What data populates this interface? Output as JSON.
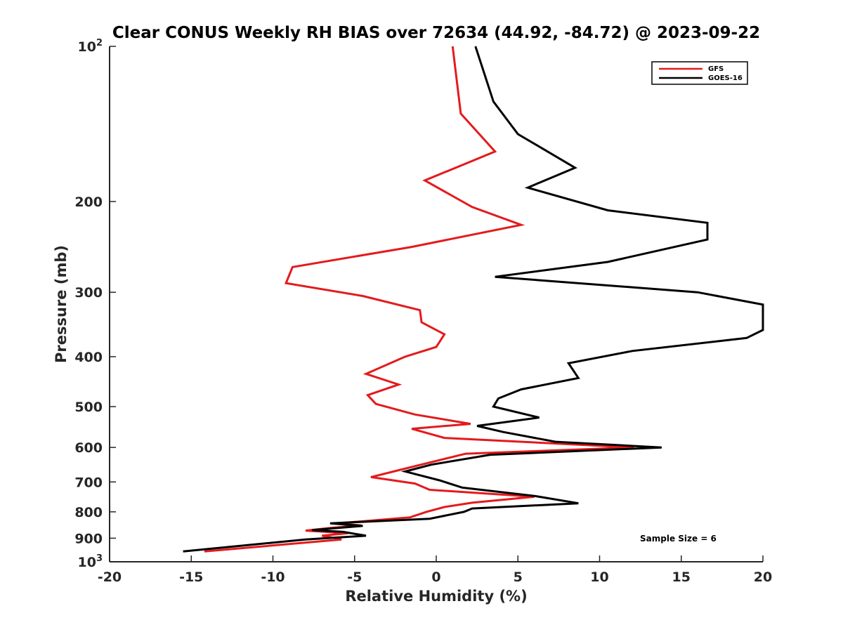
{
  "chart_data": {
    "type": "line",
    "title": "Clear CONUS Weekly RH BIAS over 72634 (44.92, -84.72) @ 2023-09-22",
    "xlabel": "Relative Humidity (%)",
    "ylabel": "Pressure (mb)",
    "xlim": [
      -20,
      20
    ],
    "ylim": [
      100,
      1000
    ],
    "y_scale": "log",
    "y_reversed": true,
    "x_ticks": [
      {
        "value": -20,
        "label": "-20"
      },
      {
        "value": -15,
        "label": "-15"
      },
      {
        "value": -10,
        "label": "-10"
      },
      {
        "value": -5,
        "label": "-5"
      },
      {
        "value": 0,
        "label": "0"
      },
      {
        "value": 5,
        "label": "5"
      },
      {
        "value": 10,
        "label": "10"
      },
      {
        "value": 15,
        "label": "15"
      },
      {
        "value": 20,
        "label": "20"
      }
    ],
    "y_ticks": [
      {
        "value": 100,
        "base": "10",
        "exp": "2",
        "label": ""
      },
      {
        "value": 200,
        "label": "200"
      },
      {
        "value": 300,
        "label": "300"
      },
      {
        "value": 400,
        "label": "400"
      },
      {
        "value": 500,
        "label": "500"
      },
      {
        "value": 600,
        "label": "600"
      },
      {
        "value": 700,
        "label": "700"
      },
      {
        "value": 800,
        "label": "800"
      },
      {
        "value": 900,
        "label": "900"
      },
      {
        "value": 1000,
        "base": "10",
        "exp": "3",
        "label": ""
      }
    ],
    "legend_position": "top-right",
    "annotation": "Sample Size = 6",
    "series": [
      {
        "name": "GFS",
        "color": "#e41a1c",
        "points": [
          [
            1.0,
            100
          ],
          [
            1.5,
            135
          ],
          [
            3.6,
            160
          ],
          [
            -0.7,
            182
          ],
          [
            2.2,
            205
          ],
          [
            5.2,
            222
          ],
          [
            -1.5,
            245
          ],
          [
            -8.8,
            268
          ],
          [
            -9.2,
            288
          ],
          [
            -4.5,
            305
          ],
          [
            -1.0,
            325
          ],
          [
            -0.9,
            343
          ],
          [
            0.5,
            362
          ],
          [
            0.0,
            383
          ],
          [
            -1.9,
            400
          ],
          [
            -4.3,
            432
          ],
          [
            -2.3,
            453
          ],
          [
            -4.2,
            475
          ],
          [
            -3.7,
            494
          ],
          [
            -1.3,
            518
          ],
          [
            2.1,
            540
          ],
          [
            -1.5,
            552
          ],
          [
            0.5,
            575
          ],
          [
            12.1,
            600
          ],
          [
            1.8,
            617
          ],
          [
            -2.2,
            663
          ],
          [
            -4.0,
            685
          ],
          [
            -1.3,
            705
          ],
          [
            -0.4,
            725
          ],
          [
            6.0,
            748
          ],
          [
            2.2,
            768
          ],
          [
            0.5,
            783
          ],
          [
            -0.6,
            800
          ],
          [
            -1.6,
            820
          ],
          [
            -6.0,
            842
          ],
          [
            -4.6,
            850
          ],
          [
            -6.5,
            860
          ],
          [
            -8.0,
            870
          ],
          [
            -5.4,
            880
          ],
          [
            -7.0,
            890
          ],
          [
            -5.8,
            905
          ],
          [
            -14.2,
            955
          ]
        ]
      },
      {
        "name": "GOES-16",
        "color": "#000000",
        "points": [
          [
            2.4,
            100
          ],
          [
            3.5,
            128
          ],
          [
            5.0,
            148
          ],
          [
            8.5,
            172
          ],
          [
            5.6,
            188
          ],
          [
            10.5,
            208
          ],
          [
            16.6,
            220
          ],
          [
            16.6,
            237
          ],
          [
            10.5,
            262
          ],
          [
            3.6,
            280
          ],
          [
            16.0,
            300
          ],
          [
            20.0,
            317
          ],
          [
            20.0,
            355
          ],
          [
            19.0,
            368
          ],
          [
            12.0,
            390
          ],
          [
            8.1,
            412
          ],
          [
            8.7,
            440
          ],
          [
            5.2,
            463
          ],
          [
            3.8,
            482
          ],
          [
            3.5,
            500
          ],
          [
            6.3,
            525
          ],
          [
            2.5,
            545
          ],
          [
            4.1,
            560
          ],
          [
            7.3,
            585
          ],
          [
            13.8,
            600
          ],
          [
            3.3,
            620
          ],
          [
            -0.3,
            648
          ],
          [
            -1.9,
            668
          ],
          [
            0.2,
            695
          ],
          [
            1.6,
            718
          ],
          [
            6.0,
            745
          ],
          [
            8.7,
            770
          ],
          [
            2.2,
            788
          ],
          [
            1.7,
            800
          ],
          [
            -0.4,
            825
          ],
          [
            -6.5,
            842
          ],
          [
            -4.5,
            852
          ],
          [
            -7.6,
            868
          ],
          [
            -5.7,
            875
          ],
          [
            -4.3,
            890
          ],
          [
            -8.0,
            905
          ],
          [
            -15.5,
            955
          ]
        ]
      }
    ]
  }
}
